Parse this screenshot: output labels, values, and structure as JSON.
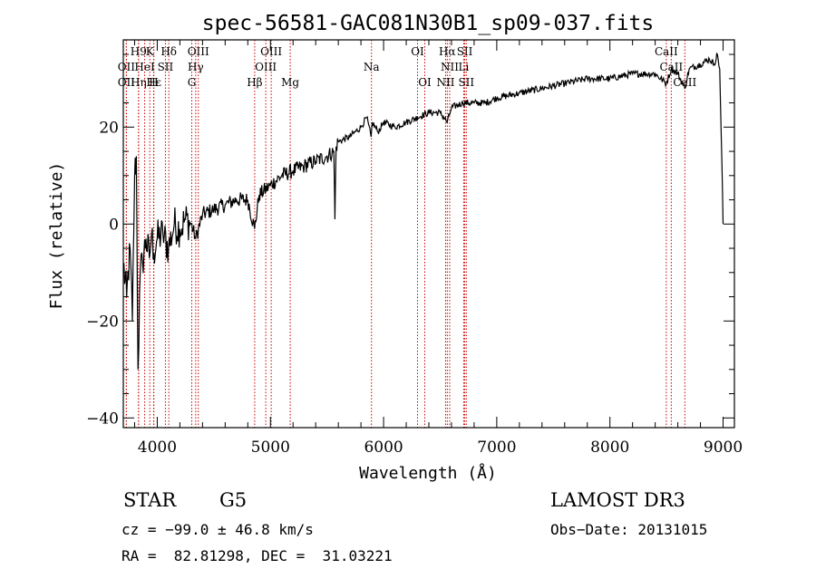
{
  "chart_data": {
    "type": "line",
    "title": "spec-56581-GAC081N30B1_sp09-037.fits",
    "xlabel": "Wavelength (Å)",
    "ylabel": "Flux (relative)",
    "xlim": [
      3700,
      9100
    ],
    "ylim": [
      -42,
      38
    ],
    "x_ticks": [
      4000,
      5000,
      6000,
      7000,
      8000,
      9000
    ],
    "x_tick_labels": [
      "4000",
      "5000",
      "6000",
      "7000",
      "8000",
      "9000"
    ],
    "y_ticks": [
      -40,
      -20,
      0,
      20
    ],
    "y_tick_labels": [
      "−40",
      "−20",
      "0",
      "20"
    ],
    "series": [
      {
        "name": "flux",
        "x": [
          3700,
          3730,
          3760,
          3780,
          3800,
          3815,
          3830,
          3850,
          3870,
          3900,
          3930,
          3950,
          3970,
          4000,
          4050,
          4100,
          4150,
          4200,
          4250,
          4300,
          4340,
          4400,
          4500,
          4600,
          4700,
          4800,
          4860,
          4900,
          5000,
          5100,
          5200,
          5300,
          5400,
          5500,
          5560,
          5570,
          5580,
          5600,
          5700,
          5800,
          5850,
          5890,
          5900,
          5950,
          6000,
          6100,
          6200,
          6300,
          6400,
          6500,
          6563,
          6600,
          6700,
          6800,
          6900,
          7000,
          7200,
          7400,
          7600,
          7800,
          8000,
          8200,
          8400,
          8498,
          8542,
          8600,
          8662,
          8700,
          8800,
          8880,
          8920,
          8950,
          8970,
          8990,
          9000
        ],
        "y": [
          -8,
          -15,
          -5,
          -20,
          10,
          14,
          -30,
          -10,
          -8,
          -3,
          -7,
          -2,
          -6,
          -3,
          -2,
          -5,
          0,
          -1,
          1,
          0,
          -3,
          2,
          3,
          4,
          5,
          5,
          -1,
          6,
          8,
          10,
          11,
          12,
          13,
          14,
          15,
          1,
          16,
          17,
          18,
          20,
          22,
          18,
          21,
          19,
          21,
          20,
          21,
          22,
          23,
          23,
          21,
          24,
          25,
          25,
          25,
          26,
          27,
          28,
          29,
          30,
          30,
          31,
          31,
          29,
          32,
          31,
          28,
          32,
          33,
          34,
          33,
          35,
          32,
          12,
          0
        ]
      }
    ],
    "spectral_lines": [
      {
        "name": "H9",
        "x": 3835,
        "row": 1
      },
      {
        "name": "K",
        "x": 3934,
        "row": 1
      },
      {
        "name": "Hδ",
        "x": 4102,
        "row": 1
      },
      {
        "name": "OIII",
        "x": 4363,
        "row": 1
      },
      {
        "name": "OIII",
        "x": 5007,
        "row": 1
      },
      {
        "name": "OI",
        "x": 6300,
        "row": 1
      },
      {
        "name": "Hα",
        "x": 6563,
        "row": 1
      },
      {
        "name": "SII",
        "x": 6717,
        "row": 1
      },
      {
        "name": "CaII",
        "x": 8498,
        "row": 1
      },
      {
        "name": "OII",
        "x": 3727,
        "row": 2
      },
      {
        "name": "HeI",
        "x": 3889,
        "row": 2
      },
      {
        "name": "SII",
        "x": 4072,
        "row": 2
      },
      {
        "name": "Hγ",
        "x": 4340,
        "row": 2
      },
      {
        "name": "OIII",
        "x": 4959,
        "row": 2
      },
      {
        "name": "Na",
        "x": 5893,
        "row": 2
      },
      {
        "name": "NII",
        "x": 6584,
        "row": 2
      },
      {
        "name": "Li",
        "x": 6708,
        "row": 2
      },
      {
        "name": "CaII",
        "x": 8542,
        "row": 2
      },
      {
        "name": "OII",
        "x": 3727,
        "row": 3
      },
      {
        "name": "Hε",
        "x": 3970,
        "row": 3
      },
      {
        "name": "Hη",
        "x": 3835,
        "row": 3
      },
      {
        "name": "H",
        "x": 3968,
        "row": 3
      },
      {
        "name": "G",
        "x": 4305,
        "row": 3
      },
      {
        "name": "Hβ",
        "x": 4861,
        "row": 3
      },
      {
        "name": "Mg",
        "x": 5175,
        "row": 3
      },
      {
        "name": "OI",
        "x": 6364,
        "row": 3
      },
      {
        "name": "NII",
        "x": 6548,
        "row": 3
      },
      {
        "name": "SII",
        "x": 6731,
        "row": 3
      },
      {
        "name": "CaII",
        "x": 8662,
        "row": 3
      }
    ]
  },
  "info": {
    "class": "STAR",
    "subclass": "G5",
    "survey": "LAMOST DR3",
    "cz": "cz = −99.0 ± 46.8 km/s",
    "obs_date": "Obs−Date: 20131015",
    "radec": "RA =  82.81298, DEC =  31.03221"
  }
}
